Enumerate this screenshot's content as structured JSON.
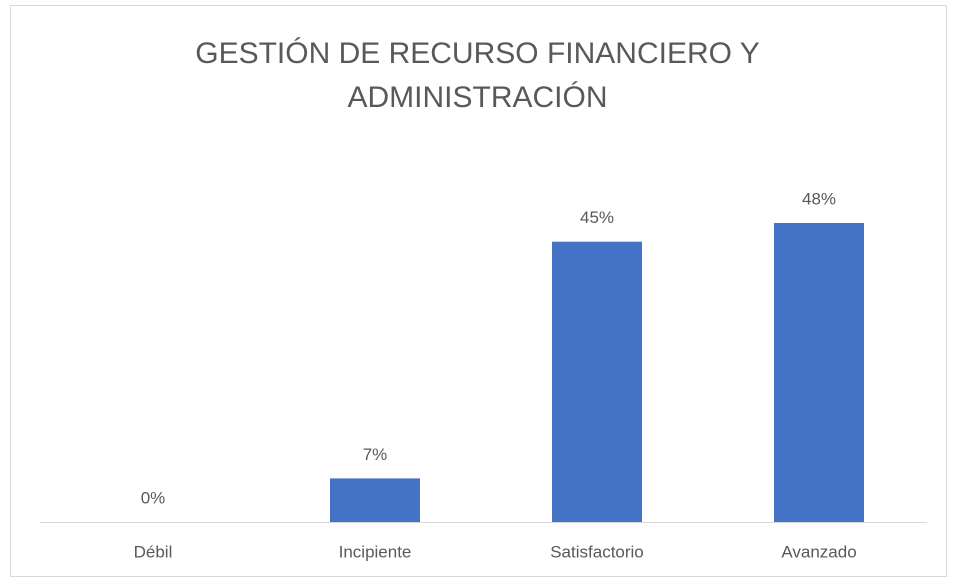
{
  "chart_data": {
    "type": "bar",
    "title": "GESTIÓN DE RECURSO FINANCIERO Y ADMINISTRACIÓN",
    "categories": [
      "Débil",
      "Incipiente",
      "Satisfactorio",
      "Avanzado"
    ],
    "values": [
      0,
      7,
      45,
      48
    ],
    "value_labels": [
      "0%",
      "7%",
      "45%",
      "48%"
    ],
    "color": "#4472c4"
  }
}
